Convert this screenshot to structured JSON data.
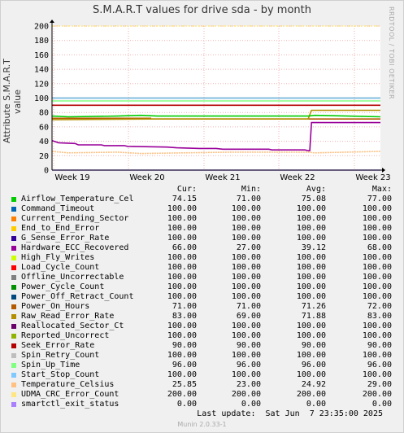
{
  "window": {
    "title": "S.M.A.R.T values for drive sda - by month",
    "side_credit": "RRDTOOL / TOBI OETIKER",
    "last_update": "Last update:  Sat Jun  7 23:35:00 2025",
    "version": "Munin 2.0.33-1"
  },
  "chart_data": {
    "type": "line",
    "title": "S.M.A.R.T values for drive sda - by month",
    "ylabel": "Attribute S.M.A.R.T value",
    "xlabel": "",
    "ylim": [
      0,
      200
    ],
    "yticks": [
      0,
      20,
      40,
      60,
      80,
      100,
      120,
      140,
      160,
      180,
      200
    ],
    "xticks": [
      "Week 19",
      "Week 20",
      "Week 21",
      "Week 22",
      "Week 23"
    ],
    "grid": true,
    "legend_columns": [
      "Cur:",
      "Min:",
      "Avg:",
      "Max:"
    ],
    "series": [
      {
        "name": "Airflow_Temperature_Cel",
        "color": "#00cc00",
        "cur": "74.15",
        "min": "71.00",
        "avg": "75.08",
        "max": "77.00"
      },
      {
        "name": "Command_Timeout",
        "color": "#0066b3",
        "cur": "100.00",
        "min": "100.00",
        "avg": "100.00",
        "max": "100.00"
      },
      {
        "name": "Current_Pending_Sector",
        "color": "#ff8000",
        "cur": "100.00",
        "min": "100.00",
        "avg": "100.00",
        "max": "100.00"
      },
      {
        "name": "End_to_End_Error",
        "color": "#ffcc00",
        "cur": "100.00",
        "min": "100.00",
        "avg": "100.00",
        "max": "100.00"
      },
      {
        "name": "G_Sense_Error_Rate",
        "color": "#330099",
        "cur": "100.00",
        "min": "100.00",
        "avg": "100.00",
        "max": "100.00"
      },
      {
        "name": "Hardware_ECC_Recovered",
        "color": "#990099",
        "cur": "66.00",
        "min": "27.00",
        "avg": "39.12",
        "max": "68.00"
      },
      {
        "name": "High_Fly_Writes",
        "color": "#ccff00",
        "cur": "100.00",
        "min": "100.00",
        "avg": "100.00",
        "max": "100.00"
      },
      {
        "name": "Load_Cycle_Count",
        "color": "#ff0000",
        "cur": "100.00",
        "min": "100.00",
        "avg": "100.00",
        "max": "100.00"
      },
      {
        "name": "Offline_Uncorrectable",
        "color": "#808080",
        "cur": "100.00",
        "min": "100.00",
        "avg": "100.00",
        "max": "100.00"
      },
      {
        "name": "Power_Cycle_Count",
        "color": "#008f00",
        "cur": "100.00",
        "min": "100.00",
        "avg": "100.00",
        "max": "100.00"
      },
      {
        "name": "Power_Off_Retract_Count",
        "color": "#00487d",
        "cur": "100.00",
        "min": "100.00",
        "avg": "100.00",
        "max": "100.00"
      },
      {
        "name": "Power_On_Hours",
        "color": "#b35a00",
        "cur": "71.00",
        "min": "71.00",
        "avg": "71.26",
        "max": "72.00"
      },
      {
        "name": "Raw_Read_Error_Rate",
        "color": "#b38f00",
        "cur": "83.00",
        "min": "69.00",
        "avg": "71.88",
        "max": "83.00"
      },
      {
        "name": "Reallocated_Sector_Ct",
        "color": "#6b006b",
        "cur": "100.00",
        "min": "100.00",
        "avg": "100.00",
        "max": "100.00"
      },
      {
        "name": "Reported_Uncorrect",
        "color": "#8fb300",
        "cur": "100.00",
        "min": "100.00",
        "avg": "100.00",
        "max": "100.00"
      },
      {
        "name": "Seek_Error_Rate",
        "color": "#b30000",
        "cur": "90.00",
        "min": "90.00",
        "avg": "90.00",
        "max": "90.00"
      },
      {
        "name": "Spin_Retry_Count",
        "color": "#bebebe",
        "cur": "100.00",
        "min": "100.00",
        "avg": "100.00",
        "max": "100.00"
      },
      {
        "name": "Spin_Up_Time",
        "color": "#80ff80",
        "cur": "96.00",
        "min": "96.00",
        "avg": "96.00",
        "max": "96.00"
      },
      {
        "name": "Start_Stop_Count",
        "color": "#80c9ff",
        "cur": "100.00",
        "min": "100.00",
        "avg": "100.00",
        "max": "100.00"
      },
      {
        "name": "Temperature_Celsius",
        "color": "#ffc080",
        "cur": "25.85",
        "min": "23.00",
        "avg": "24.92",
        "max": "29.00"
      },
      {
        "name": "UDMA_CRC_Error_Count",
        "color": "#ffe680",
        "cur": "200.00",
        "min": "200.00",
        "avg": "200.00",
        "max": "200.00"
      },
      {
        "name": "smartctl_exit_status",
        "color": "#aa80ff",
        "cur": "0.00",
        "min": "0.00",
        "avg": "0.00",
        "max": "0.00"
      }
    ]
  }
}
